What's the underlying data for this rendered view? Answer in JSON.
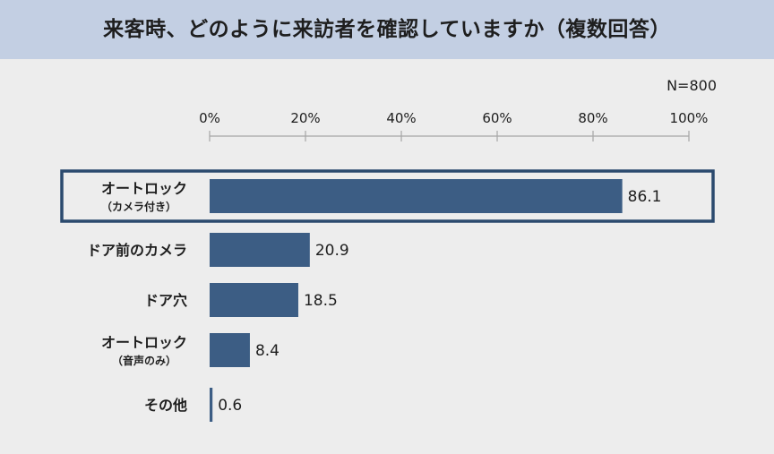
{
  "title": "来客時、どのように来訪者を確認していますか（複数回答）",
  "colors": {
    "bar": "#3c5d84",
    "title_background": "#c3cfe3",
    "page_background": "#ededed",
    "highlight_border": "#2b4a6e",
    "axis": "#a6a6a6"
  },
  "chart_data": {
    "type": "bar",
    "orientation": "horizontal",
    "sample_size_label": "N=800",
    "x_ticks": [
      "0%",
      "20%",
      "40%",
      "60%",
      "80%",
      "100%"
    ],
    "xlim": [
      0,
      100
    ],
    "categories": [
      {
        "label": "オートロック",
        "sublabel": "（カメラ付き）",
        "highlight": true
      },
      {
        "label": "ドア前のカメラ",
        "sublabel": ""
      },
      {
        "label": "ドア穴",
        "sublabel": ""
      },
      {
        "label": "オートロック",
        "sublabel": "（音声のみ）"
      },
      {
        "label": "その他",
        "sublabel": ""
      }
    ],
    "values": [
      86.1,
      20.9,
      18.5,
      8.4,
      0.6
    ],
    "value_labels": [
      "86.1",
      "20.9",
      "18.5",
      "8.4",
      "0.6"
    ]
  }
}
